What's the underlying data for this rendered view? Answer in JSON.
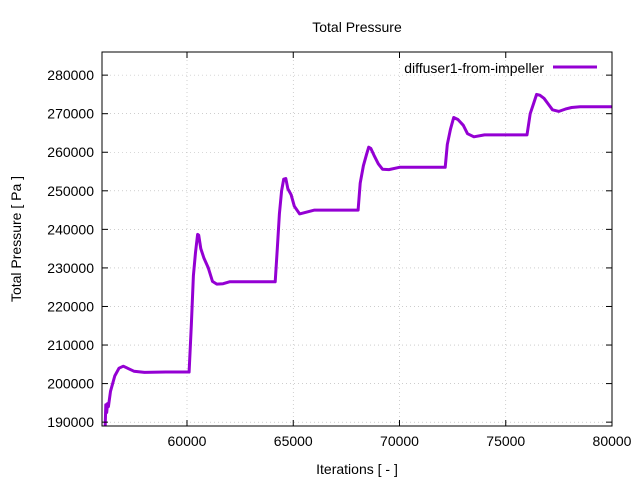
{
  "chart_data": {
    "type": "line",
    "title": "Total Pressure",
    "xlabel": "Iterations [ - ]",
    "ylabel": "Total Pressure [ Pa ]",
    "xlim": [
      56000,
      80000
    ],
    "ylim": [
      189000,
      286000
    ],
    "xticks": [
      60000,
      65000,
      70000,
      75000,
      80000
    ],
    "yticks": [
      190000,
      200000,
      210000,
      220000,
      230000,
      240000,
      250000,
      260000,
      270000,
      280000
    ],
    "grid": true,
    "legend_position": "top-right",
    "series": [
      {
        "name": "diffuser1-from-impeller",
        "color": "#9400d3",
        "points": [
          [
            56150,
            189000
          ],
          [
            56180,
            194500
          ],
          [
            56220,
            192500
          ],
          [
            56260,
            194800
          ],
          [
            56300,
            194000
          ],
          [
            56400,
            198000
          ],
          [
            56600,
            202000
          ],
          [
            56800,
            204000
          ],
          [
            57000,
            204500
          ],
          [
            57200,
            204000
          ],
          [
            57500,
            203200
          ],
          [
            58000,
            202900
          ],
          [
            59000,
            203000
          ],
          [
            60100,
            203000
          ],
          [
            60200,
            215000
          ],
          [
            60300,
            228000
          ],
          [
            60400,
            234000
          ],
          [
            60500,
            238700
          ],
          [
            60550,
            238500
          ],
          [
            60650,
            235000
          ],
          [
            60800,
            232500
          ],
          [
            61000,
            230000
          ],
          [
            61200,
            226500
          ],
          [
            61400,
            225800
          ],
          [
            61700,
            225900
          ],
          [
            62000,
            226400
          ],
          [
            63000,
            226400
          ],
          [
            64150,
            226400
          ],
          [
            64250,
            235000
          ],
          [
            64350,
            244000
          ],
          [
            64450,
            250000
          ],
          [
            64550,
            253000
          ],
          [
            64650,
            253200
          ],
          [
            64750,
            250500
          ],
          [
            64900,
            249000
          ],
          [
            65050,
            246000
          ],
          [
            65300,
            244000
          ],
          [
            65500,
            244300
          ],
          [
            66000,
            245000
          ],
          [
            67000,
            245000
          ],
          [
            68050,
            245000
          ],
          [
            68150,
            252000
          ],
          [
            68300,
            256500
          ],
          [
            68450,
            259500
          ],
          [
            68550,
            261300
          ],
          [
            68650,
            261000
          ],
          [
            68800,
            259200
          ],
          [
            69000,
            257000
          ],
          [
            69200,
            255600
          ],
          [
            69500,
            255500
          ],
          [
            70000,
            256100
          ],
          [
            71000,
            256100
          ],
          [
            72150,
            256100
          ],
          [
            72250,
            262000
          ],
          [
            72400,
            266000
          ],
          [
            72550,
            269000
          ],
          [
            72750,
            268500
          ],
          [
            73000,
            267000
          ],
          [
            73200,
            264800
          ],
          [
            73500,
            264000
          ],
          [
            74000,
            264500
          ],
          [
            75000,
            264500
          ],
          [
            76000,
            264500
          ],
          [
            76150,
            270000
          ],
          [
            76300,
            272500
          ],
          [
            76450,
            275000
          ],
          [
            76600,
            274800
          ],
          [
            76800,
            274000
          ],
          [
            77000,
            272500
          ],
          [
            77200,
            271000
          ],
          [
            77500,
            270600
          ],
          [
            77800,
            271200
          ],
          [
            78100,
            271600
          ],
          [
            78500,
            271800
          ],
          [
            79000,
            271800
          ],
          [
            79500,
            271800
          ],
          [
            80000,
            271800
          ]
        ]
      }
    ]
  }
}
